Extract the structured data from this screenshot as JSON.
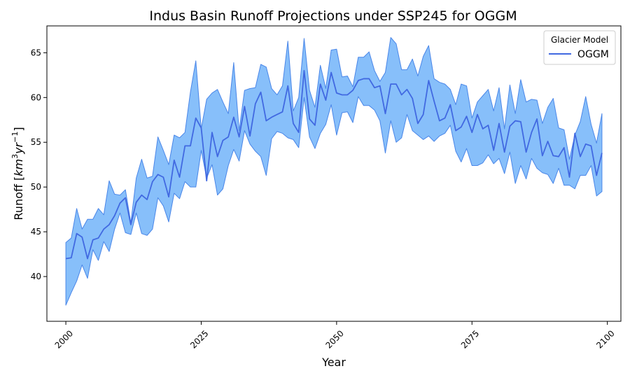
{
  "chart_data": {
    "type": "line",
    "title": "Indus Basin Runoff Projections under SSP245 for OGGM",
    "xlabel": "Year",
    "ylabel_base": "Runoff [",
    "ylabel_unit": "km",
    "ylabel_exp1": "3",
    "ylabel_mid": "yr",
    "ylabel_exp2": "−1",
    "ylabel_end": "]",
    "xlim": [
      1996.5,
      2102.5
    ],
    "ylim": [
      35.0,
      68.0
    ],
    "xticks": [
      2000,
      2025,
      2050,
      2075,
      2100
    ],
    "yticks": [
      40,
      45,
      50,
      55,
      60,
      65
    ],
    "legend": {
      "title": "Glacier Model",
      "position": "top-right"
    },
    "colors": {
      "line": "#4169e1",
      "band_fill": "#87bffa",
      "band_edge": "#4a86e8"
    },
    "series": [
      {
        "name": "OGGM",
        "x": [
          2000,
          2001,
          2002,
          2003,
          2004,
          2005,
          2006,
          2007,
          2008,
          2009,
          2010,
          2011,
          2012,
          2013,
          2014,
          2015,
          2016,
          2017,
          2018,
          2019,
          2020,
          2021,
          2022,
          2023,
          2024,
          2025,
          2026,
          2027,
          2028,
          2029,
          2030,
          2031,
          2032,
          2033,
          2034,
          2035,
          2036,
          2037,
          2038,
          2039,
          2040,
          2041,
          2042,
          2043,
          2044,
          2045,
          2046,
          2047,
          2048,
          2049,
          2050,
          2051,
          2052,
          2053,
          2054,
          2055,
          2056,
          2057,
          2058,
          2059,
          2060,
          2061,
          2062,
          2063,
          2064,
          2065,
          2066,
          2067,
          2068,
          2069,
          2070,
          2071,
          2072,
          2073,
          2074,
          2075,
          2076,
          2077,
          2078,
          2079,
          2080,
          2081,
          2082,
          2083,
          2084,
          2085,
          2086,
          2087,
          2088,
          2089,
          2090,
          2091,
          2092,
          2093,
          2094,
          2095,
          2096,
          2097,
          2098,
          2099
        ],
        "values": [
          42.0,
          42.1,
          44.8,
          44.4,
          42.0,
          44.1,
          44.3,
          45.3,
          45.8,
          46.8,
          48.2,
          48.8,
          45.8,
          48.3,
          49.1,
          48.6,
          50.6,
          51.4,
          51.1,
          48.9,
          53.0,
          51.1,
          54.6,
          54.6,
          57.7,
          56.6,
          50.7,
          56.1,
          53.4,
          55.2,
          55.6,
          57.8,
          55.6,
          59.0,
          55.7,
          59.3,
          60.6,
          57.4,
          57.8,
          58.1,
          58.4,
          61.3,
          57.1,
          56.1,
          63.0,
          57.6,
          56.9,
          61.5,
          59.7,
          62.8,
          60.5,
          60.3,
          60.3,
          60.8,
          61.9,
          62.1,
          62.1,
          61.1,
          61.3,
          58.2,
          61.5,
          61.5,
          60.3,
          60.9,
          59.9,
          57.1,
          58.1,
          61.9,
          59.6,
          57.4,
          57.7,
          59.2,
          56.3,
          56.7,
          57.9,
          56.1,
          58.1,
          56.5,
          56.9,
          54.1,
          57.1,
          53.9,
          56.8,
          57.4,
          57.3,
          53.9,
          56.1,
          57.6,
          53.5,
          55.1,
          53.5,
          53.4,
          54.4,
          51.1,
          56.0,
          53.4,
          54.8,
          54.6,
          51.3,
          53.8
        ]
      }
    ],
    "band": {
      "lower": [
        36.8,
        38.2,
        39.5,
        41.3,
        39.8,
        43.0,
        41.8,
        43.9,
        42.8,
        45.3,
        47.1,
        44.9,
        44.7,
        47.1,
        44.8,
        44.6,
        45.3,
        48.8,
        47.9,
        46.1,
        49.3,
        48.7,
        50.6,
        50.0,
        50.0,
        54.1,
        51.0,
        52.5,
        49.1,
        49.8,
        52.4,
        54.2,
        52.9,
        56.3,
        54.8,
        54.0,
        53.4,
        51.3,
        55.4,
        56.2,
        56.0,
        55.5,
        55.3,
        54.4,
        60.0,
        55.6,
        54.3,
        56.0,
        57.0,
        59.2,
        55.8,
        58.3,
        58.4,
        57.2,
        60.1,
        59.1,
        59.1,
        58.6,
        57.4,
        53.8,
        57.4,
        55.0,
        55.5,
        58.1,
        56.3,
        55.8,
        55.3,
        55.7,
        55.1,
        55.7,
        56.0,
        56.9,
        54.0,
        52.8,
        54.3,
        52.4,
        52.4,
        52.7,
        53.6,
        52.6,
        53.2,
        51.5,
        53.9,
        50.4,
        52.4,
        50.9,
        53.2,
        52.1,
        51.6,
        51.4,
        50.4,
        52.1,
        50.2,
        50.2,
        49.8,
        51.3,
        51.3,
        52.4,
        49.0,
        49.5
      ],
      "upper": [
        43.8,
        44.3,
        47.6,
        45.3,
        46.4,
        46.4,
        47.6,
        46.9,
        50.7,
        49.2,
        49.1,
        49.7,
        46.0,
        51.0,
        53.1,
        51.0,
        51.2,
        55.6,
        54.1,
        52.5,
        55.8,
        55.5,
        56.1,
        60.6,
        64.1,
        56.5,
        59.8,
        60.5,
        60.9,
        59.5,
        58.2,
        63.9,
        56.3,
        60.8,
        61.0,
        61.1,
        63.7,
        63.4,
        61.0,
        60.3,
        61.3,
        66.3,
        58.5,
        60.0,
        66.6,
        60.8,
        58.9,
        63.6,
        61.0,
        65.3,
        65.4,
        62.3,
        62.4,
        61.2,
        64.5,
        64.5,
        65.1,
        63.0,
        61.8,
        62.8,
        66.7,
        66.0,
        63.1,
        63.1,
        64.3,
        62.4,
        64.6,
        65.8,
        62.1,
        61.7,
        61.5,
        60.9,
        59.2,
        61.5,
        61.3,
        57.7,
        59.5,
        60.2,
        60.9,
        58.5,
        61.1,
        56.5,
        61.4,
        58.2,
        62.0,
        59.5,
        59.8,
        59.7,
        57.1,
        58.9,
        59.9,
        56.6,
        56.4,
        53.1,
        55.8,
        57.3,
        60.1,
        57.0,
        54.9,
        58.2
      ]
    }
  }
}
